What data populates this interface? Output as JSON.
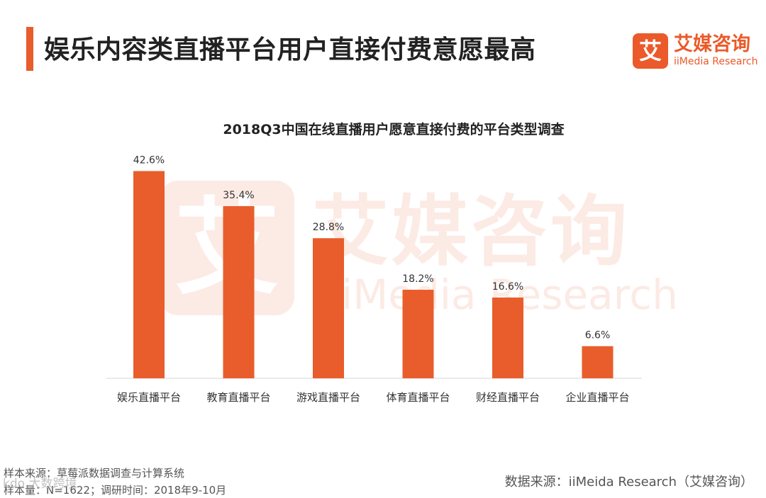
{
  "page": {
    "title": "娱乐内容类直播平台用户直接付费意愿最高"
  },
  "logo": {
    "mark": "艾",
    "name_cn": "艾媒咨询",
    "name_en": "iiMedia Research"
  },
  "watermark": {
    "mark": "艾",
    "name_cn": "艾媒咨询",
    "name_en": "iiMedia Research"
  },
  "chart_data": {
    "type": "bar",
    "title": "2018Q3中国在线直播用户愿意直接付费的平台类型调查",
    "categories": [
      "娱乐直播平台",
      "教育直播平台",
      "游戏直播平台",
      "体育直播平台",
      "财经直播平台",
      "企业直播平台"
    ],
    "values": [
      42.6,
      35.4,
      28.8,
      18.2,
      16.6,
      6.6
    ],
    "value_labels": [
      "42.6%",
      "35.4%",
      "28.8%",
      "18.2%",
      "16.6%",
      "6.6%"
    ],
    "xlabel": "",
    "ylabel": "",
    "ylim": [
      0,
      45
    ],
    "color": "#e85d2b"
  },
  "footer": {
    "sample_source": "样本来源：草莓派数据调查与计算系统",
    "sample_info": "样本量：N=1622；调研时间：2018年9-10月",
    "data_source": "数据来源：iiMeida Research（艾媒咨询）",
    "corner_mark": "kdo 大数跨境"
  },
  "colors": {
    "accent": "#e85d2b",
    "text": "#222222",
    "axis": "#d6d6d6"
  }
}
